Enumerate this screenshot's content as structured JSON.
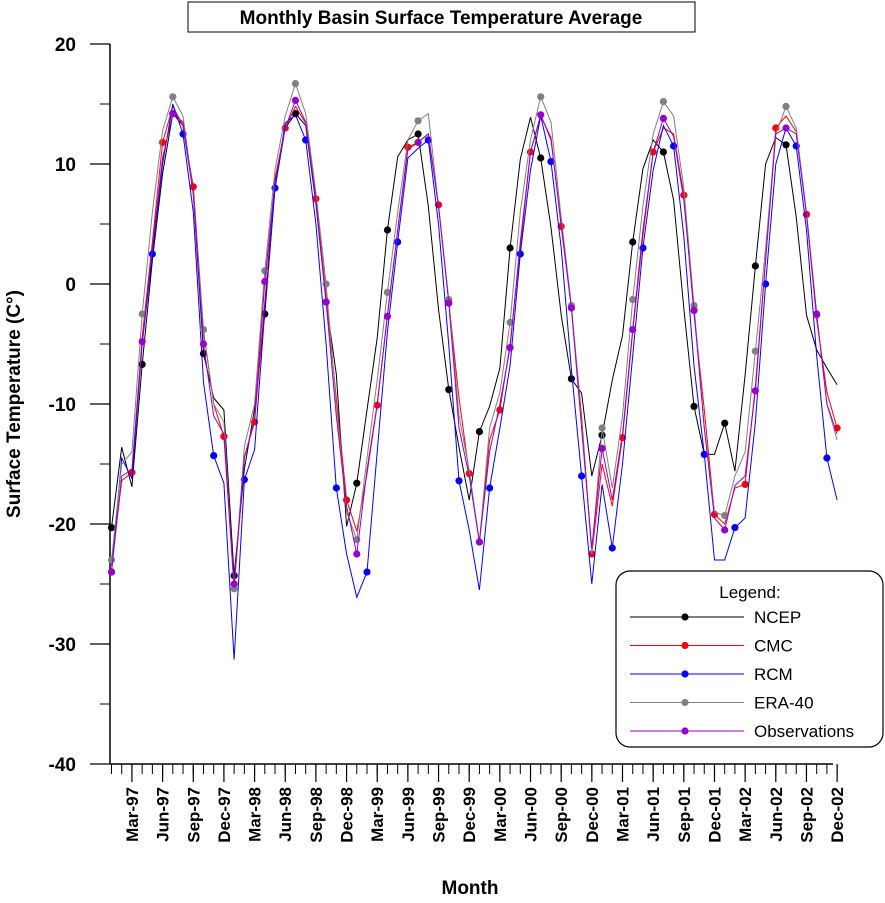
{
  "chart_data": {
    "type": "line",
    "title": "Monthly Basin Surface Temperature Average",
    "xlabel": "Month",
    "ylabel": "Surface Temperature (C°)",
    "ylim": [
      -40,
      20
    ],
    "yticks": [
      "20",
      "10",
      "0",
      "-10",
      "-20",
      "-30",
      "-40"
    ],
    "x_start": "Jan-97",
    "x_end": "Dec-02",
    "x_tick_labels": [
      "Mar-97",
      "Jun-97",
      "Sep-97",
      "Dec-97",
      "Mar-98",
      "Jun-98",
      "Sep-98",
      "Dec-98",
      "Mar-99",
      "Jun-99",
      "Sep-99",
      "Dec-99",
      "Mar-00",
      "Jun-00",
      "Sep-00",
      "Dec-00",
      "Mar-01",
      "Jun-01",
      "Sep-01",
      "Dec-01",
      "Mar-02",
      "Jun-02",
      "Sep-02",
      "Dec-02"
    ],
    "legend": {
      "title": "Legend:",
      "position": "bottom-right"
    },
    "series": [
      {
        "name": "NCEP",
        "color": "#000000",
        "values": [
          -20.3,
          -13.6,
          -16.9,
          -6.7,
          2.0,
          9.2,
          14.2,
          13.2,
          7.6,
          -5.8,
          -9.5,
          -10.5,
          -24.3,
          -15.4,
          -10.4,
          -2.5,
          8.0,
          13.0,
          14.2,
          13.2,
          6.7,
          -1.5,
          -7.5,
          -20.2,
          -16.6,
          -10.5,
          -4.5,
          4.5,
          10.6,
          12.0,
          12.5,
          6.5,
          -2.1,
          -8.8,
          -13.6,
          -18.0,
          -12.3,
          -10.2,
          -7.0,
          3.0,
          10.4,
          13.9,
          10.5,
          4.7,
          -2.6,
          -7.9,
          -9.1,
          -16.0,
          -12.6,
          -8.0,
          -4.3,
          3.5,
          9.6,
          12.0,
          11.0,
          7.0,
          -2.0,
          -10.2,
          -14.2,
          -14.2,
          -11.6,
          -15.6,
          -7.6,
          1.5,
          10.0,
          12.2,
          11.6,
          5.6,
          -2.6,
          -5.5,
          -7.0,
          -8.4
        ]
      },
      {
        "name": "CMC",
        "color": "#ff0000",
        "values": [
          -23.5,
          -16.4,
          -15.7,
          -4.4,
          3.5,
          11.8,
          14.8,
          13.2,
          8.1,
          -3.9,
          -10.0,
          -12.7,
          -25.4,
          -14.4,
          -11.5,
          -1.5,
          8.8,
          13.0,
          14.8,
          13.4,
          7.1,
          -1.0,
          -9.5,
          -18.0,
          -20.6,
          -15.8,
          -10.1,
          -2.6,
          4.5,
          11.4,
          11.8,
          12.5,
          6.6,
          -1.5,
          -9.5,
          -15.8,
          -21.5,
          -13.0,
          -10.5,
          -5.0,
          3.0,
          11.0,
          14.0,
          12.2,
          4.8,
          -2.0,
          -11.0,
          -22.5,
          -15.0,
          -18.5,
          -12.8,
          -4.0,
          4.0,
          11.0,
          13.0,
          12.5,
          7.4,
          -2.5,
          -10.5,
          -19.2,
          -20.0,
          -17.0,
          -16.7,
          -8.5,
          2.0,
          13.0,
          14.0,
          12.7,
          5.8,
          -3.0,
          -9.0,
          -12.0
        ]
      },
      {
        "name": "RCM",
        "color": "#0000ff",
        "values": [
          -24.0,
          -14.5,
          -16.2,
          -5.0,
          2.5,
          10.0,
          15.0,
          12.5,
          6.0,
          -8.2,
          -14.3,
          -16.6,
          -31.3,
          -16.3,
          -13.8,
          -2.2,
          8.0,
          13.4,
          14.1,
          12.0,
          5.0,
          -5.0,
          -17.0,
          -22.5,
          -26.1,
          -24.0,
          -14.0,
          -4.0,
          3.5,
          10.5,
          11.3,
          12.0,
          5.0,
          -5.1,
          -16.4,
          -20.5,
          -25.5,
          -17.0,
          -12.0,
          -6.8,
          2.5,
          9.5,
          14.0,
          10.2,
          3.0,
          -7.1,
          -16.0,
          -25.0,
          -16.7,
          -22.0,
          -15.0,
          -6.0,
          3.0,
          9.5,
          13.2,
          11.5,
          4.0,
          -6.8,
          -14.2,
          -23.0,
          -23.0,
          -20.3,
          -19.5,
          -11.5,
          0.0,
          10.0,
          13.0,
          11.5,
          4.5,
          -6.0,
          -14.5,
          -18.0
        ]
      },
      {
        "name": "ERA-40",
        "color": "#808080",
        "values": [
          -23.0,
          -15.0,
          -14.0,
          -2.5,
          6.0,
          12.8,
          15.6,
          14.0,
          7.5,
          -3.8,
          -10.0,
          -11.5,
          -25.4,
          -13.5,
          -10.0,
          1.1,
          9.5,
          14.0,
          16.7,
          14.2,
          7.6,
          0.0,
          -10.0,
          -19.0,
          -21.3,
          -14.5,
          -8.0,
          -0.7,
          6.0,
          12.0,
          13.6,
          14.2,
          6.5,
          -1.3,
          -11.0,
          -15.5,
          -21.5,
          -12.0,
          -9.0,
          -3.2,
          6.0,
          12.0,
          15.6,
          13.5,
          5.5,
          -1.8,
          -11.5,
          -22.5,
          -12.0,
          -17.0,
          -11.0,
          -1.3,
          6.5,
          12.5,
          15.2,
          14.0,
          8.0,
          -1.8,
          -12.0,
          -19.0,
          -19.3,
          -16.0,
          -14.0,
          -5.6,
          3.0,
          12.5,
          14.8,
          13.0,
          6.0,
          -2.6,
          -10.0,
          -13.0
        ]
      },
      {
        "name": "Observations",
        "color": "#9900cc",
        "values": [
          -24.0,
          -16.0,
          -15.5,
          -4.8,
          3.0,
          10.5,
          14.2,
          13.5,
          7.5,
          -5.0,
          -11.0,
          -12.5,
          -25.0,
          -14.5,
          -11.2,
          0.2,
          8.5,
          13.0,
          15.3,
          13.5,
          7.0,
          -1.5,
          -11.0,
          -18.5,
          -22.5,
          -15.5,
          -10.0,
          -2.7,
          4.5,
          11.2,
          11.8,
          12.5,
          6.5,
          -1.6,
          -12.0,
          -16.0,
          -21.5,
          -14.0,
          -10.0,
          -5.3,
          3.5,
          11.0,
          14.1,
          12.0,
          5.0,
          -2.0,
          -12.0,
          -22.0,
          -13.7,
          -18.0,
          -12.5,
          -3.8,
          4.5,
          11.0,
          13.8,
          12.3,
          7.0,
          -2.2,
          -12.0,
          -19.5,
          -20.5,
          -16.8,
          -16.0,
          -8.9,
          2.0,
          12.5,
          13.0,
          12.5,
          5.8,
          -2.5,
          -10.0,
          -12.5
        ]
      }
    ],
    "marker_months": [
      [
        0,
        3,
        6,
        9,
        12,
        15,
        18,
        21,
        24,
        27,
        30,
        33,
        36,
        39,
        42,
        45,
        48,
        51,
        54,
        57,
        60,
        63,
        66
      ],
      [
        2,
        5,
        8,
        11,
        14,
        17,
        20,
        23,
        26,
        29,
        32,
        35,
        38,
        41,
        44,
        47,
        50,
        53,
        56,
        59,
        62,
        65,
        68,
        71
      ],
      [
        0,
        4,
        7,
        10,
        13,
        16,
        19,
        22,
        25,
        28,
        31,
        34,
        37,
        40,
        43,
        46,
        49,
        52,
        55,
        58,
        61,
        64,
        67,
        70
      ],
      [
        0,
        3,
        6,
        9,
        12,
        15,
        18,
        21,
        24,
        27,
        30,
        33,
        36,
        39,
        42,
        45,
        48,
        51,
        54,
        57,
        60,
        63,
        66,
        69
      ],
      [
        0,
        3,
        6,
        9,
        12,
        15,
        18,
        21,
        24,
        27,
        30,
        33,
        36,
        39,
        42,
        45,
        48,
        51,
        54,
        57,
        60,
        63,
        66,
        69
      ]
    ]
  }
}
